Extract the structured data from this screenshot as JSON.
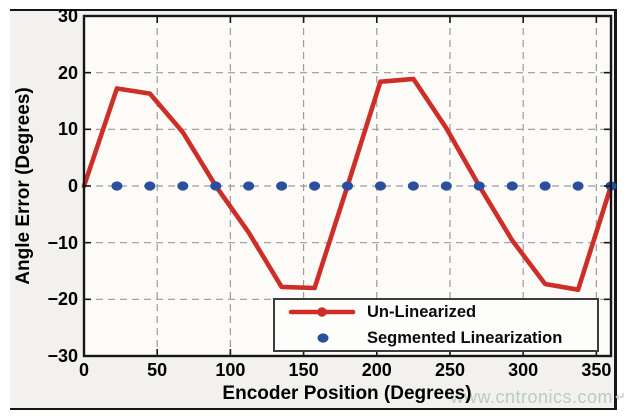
{
  "figure": {
    "watermark": "www.cntronics.com",
    "return_mark": "↵",
    "colors": {
      "red": "#cf2d28",
      "blue": "#2b4f9e",
      "grid": "#9b9b9b",
      "axis": "#161616",
      "plot_bg": "#fcfbf8",
      "cell_bg": "#f3f1ee",
      "watermark": "#b7cdc1"
    }
  },
  "chart_data": {
    "type": "line",
    "title": "",
    "xlabel": "Encoder Position (Degrees)",
    "ylabel": "Angle Error (Degrees)",
    "xlim": [
      0,
      360
    ],
    "ylim": [
      -30,
      30
    ],
    "x_ticks": [
      0,
      50,
      100,
      150,
      200,
      250,
      300,
      350
    ],
    "y_ticks": [
      -30,
      -20,
      -10,
      0,
      10,
      20,
      30
    ],
    "grid": true,
    "legend_position": "inside-bottom-right",
    "series": [
      {
        "name": "Un-Linearized",
        "type": "line",
        "color": "#cf2d28",
        "x": [
          0,
          22.5,
          45,
          67.5,
          90,
          112.5,
          135,
          157.5,
          180,
          202.5,
          225,
          247.5,
          270,
          292.5,
          315,
          337.5,
          360
        ],
        "y": [
          0,
          17.2,
          16.3,
          9.5,
          0,
          -8.2,
          -17.8,
          -18.0,
          0,
          18.4,
          18.9,
          10.2,
          0,
          -9.6,
          -17.3,
          -18.3,
          0
        ]
      },
      {
        "name": "Segmented Linearization",
        "type": "scatter",
        "color": "#2b4f9e",
        "x": [
          22.5,
          45,
          67.5,
          90,
          112.5,
          135,
          157.5,
          180,
          202.5,
          225,
          247.5,
          270,
          292.5,
          315,
          337.5,
          360
        ],
        "y": [
          0,
          0,
          0,
          0,
          0,
          0,
          0,
          0,
          0,
          0,
          0,
          0,
          0,
          0,
          0,
          0
        ]
      }
    ]
  }
}
